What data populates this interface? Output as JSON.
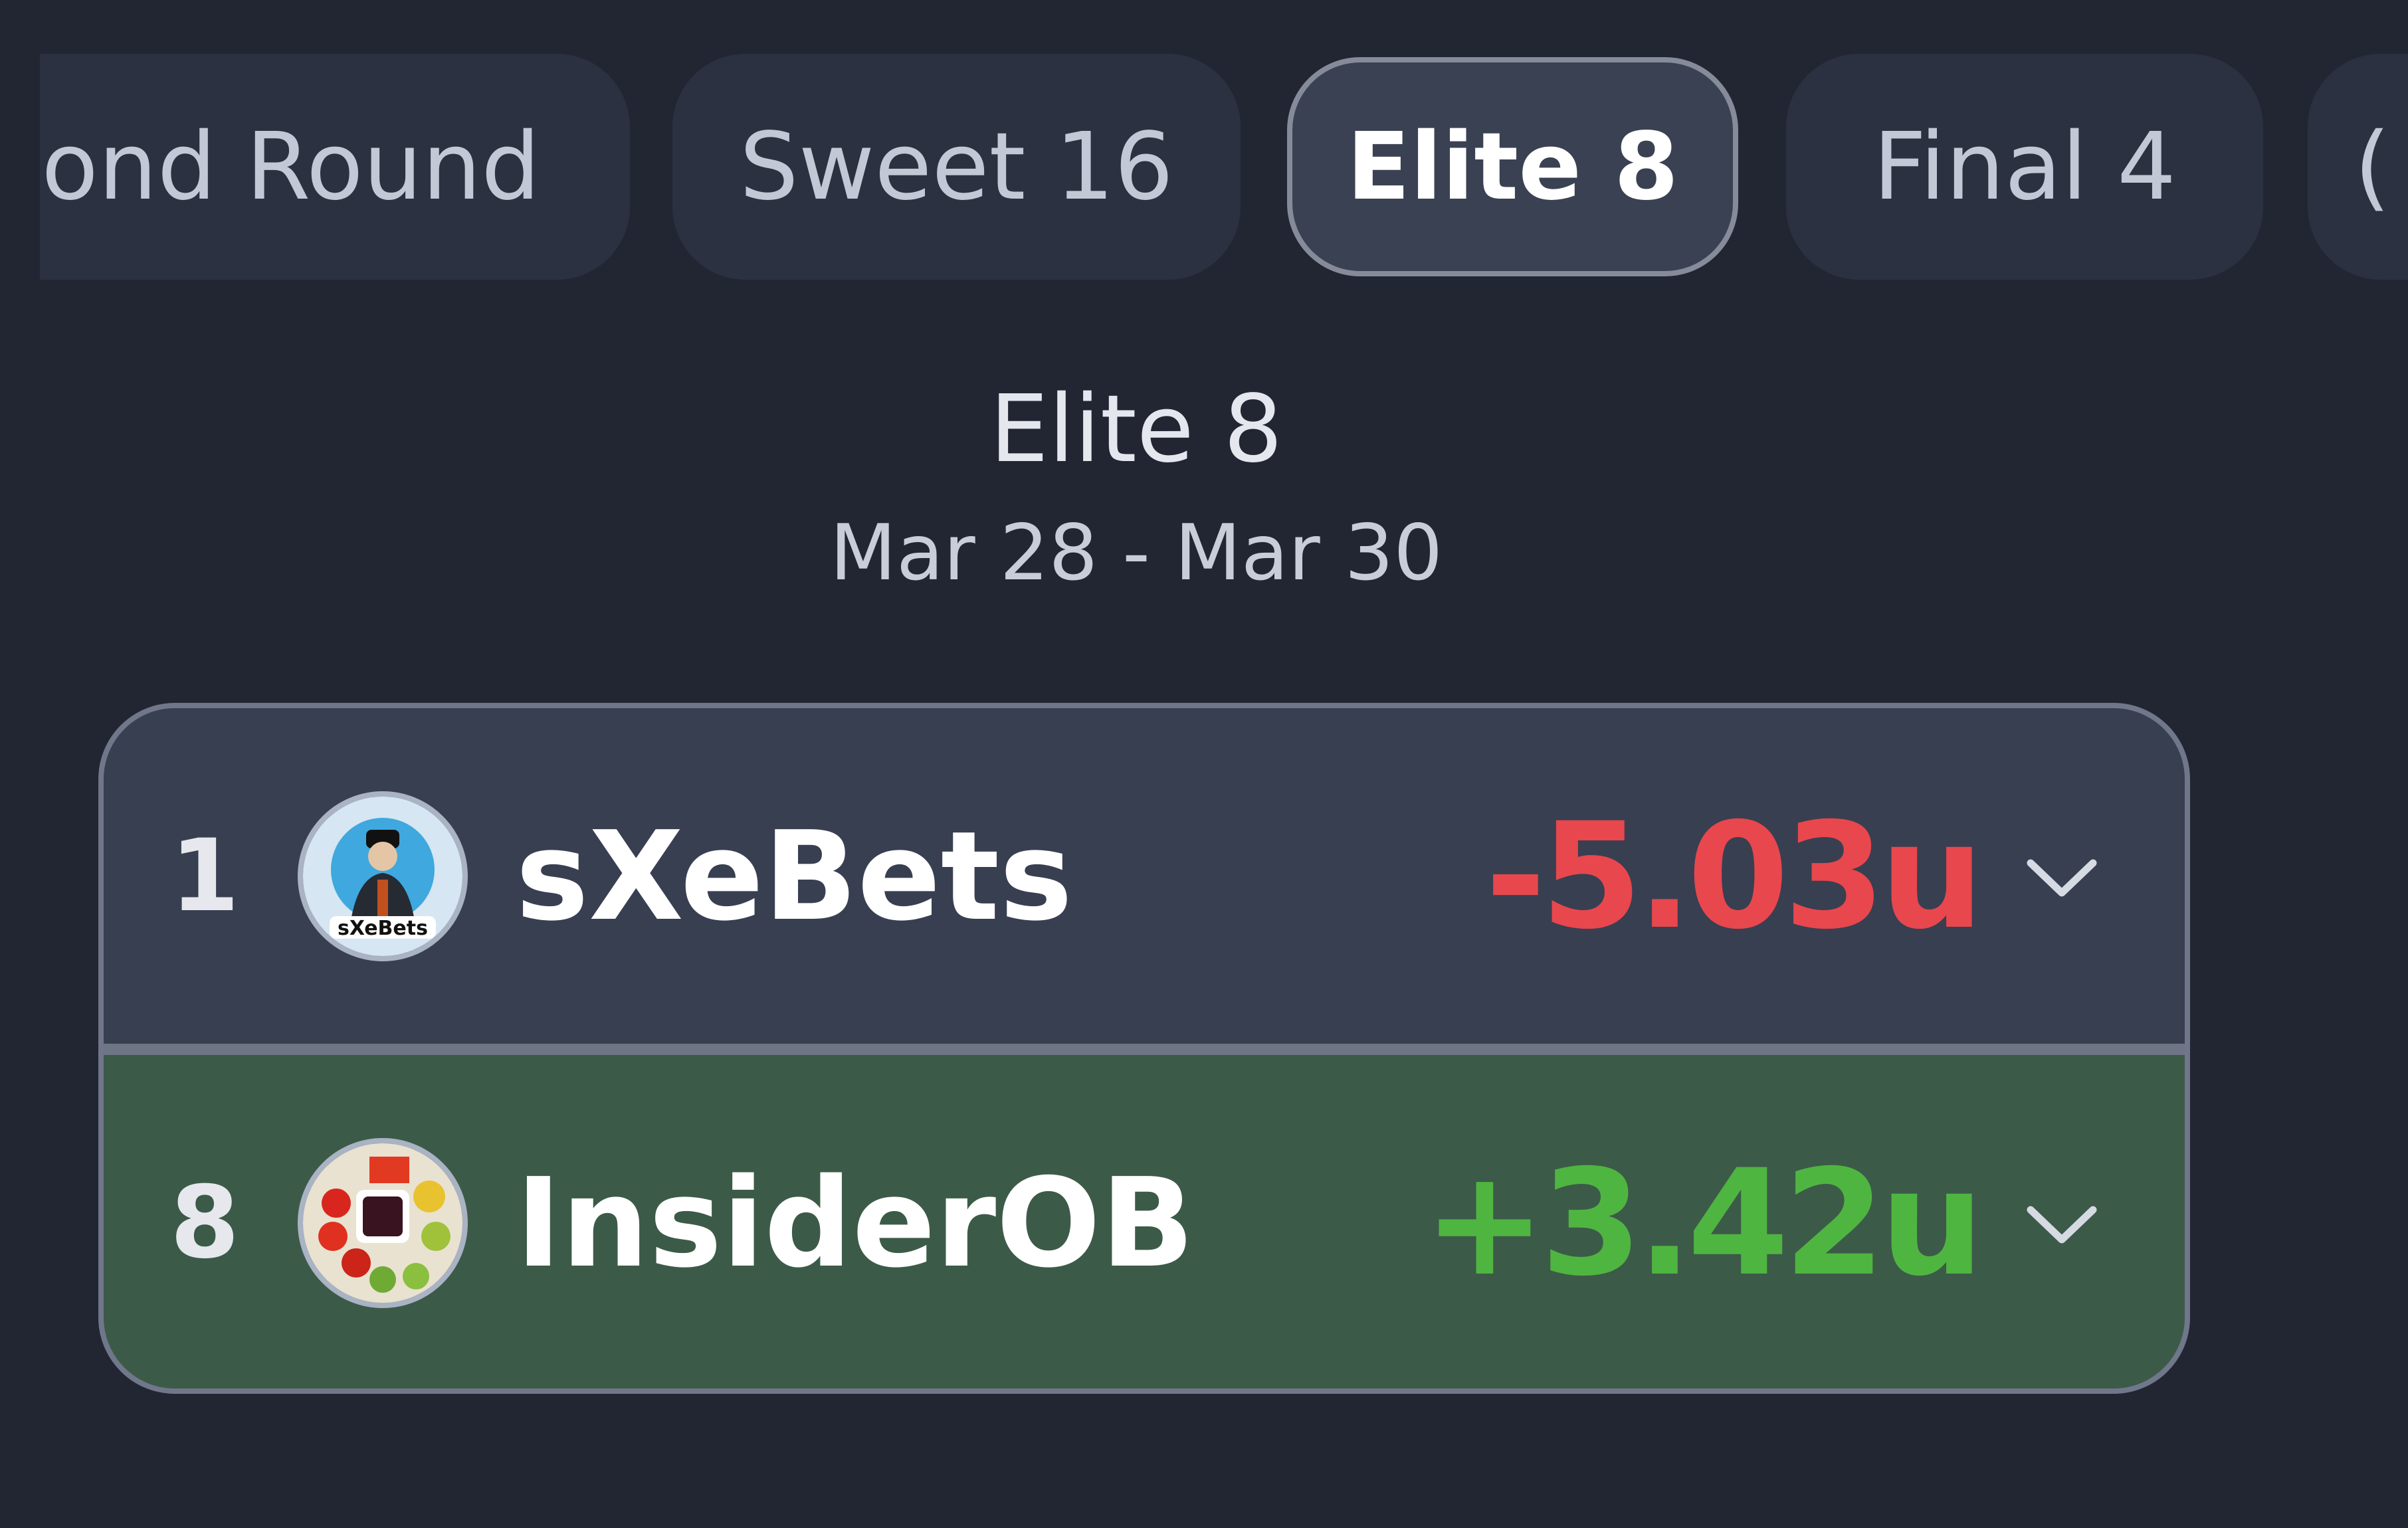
{
  "tabs": [
    {
      "label": "Second Round",
      "visible_text": "cond Round",
      "active": false
    },
    {
      "label": "Sweet 16",
      "active": false
    },
    {
      "label": "Elite 8",
      "active": true
    },
    {
      "label": "Final 4",
      "active": false
    },
    {
      "label": "C",
      "visible_text": "(",
      "active": false
    }
  ],
  "round": {
    "title": "Elite 8",
    "dates": "Mar 28 - Mar 30"
  },
  "matchup": [
    {
      "seed": "1",
      "name": "sXeBets",
      "result": "-5.03u",
      "result_color": "#e8474d",
      "row_color": "#383f51",
      "avatar_icon": "cartoon-avatar",
      "avatar_logo_text": "sXeBets"
    },
    {
      "seed": "8",
      "name": "InsiderOB",
      "result": "+3.42u",
      "result_color": "#4fb541",
      "row_color": "#3c5a48",
      "avatar_icon": "veggie-platter-avatar"
    }
  ],
  "colors": {
    "background": "#222632",
    "tab": "#2b3140",
    "active_tab": "#3a4152",
    "active_border": "#868b99"
  }
}
